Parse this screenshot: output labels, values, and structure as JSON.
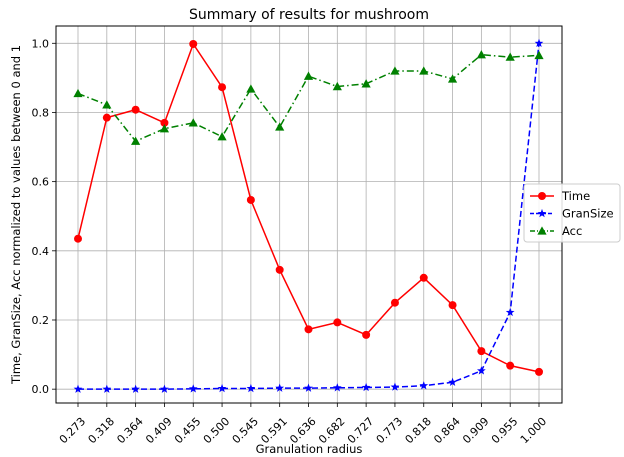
{
  "chart_data": {
    "type": "line",
    "title": "Summary of results for mushroom",
    "xlabel": "Granulation radius",
    "ylabel": "Time, GranSize, Acc normalized to values between 0 and 1",
    "categories": [
      "0.273",
      "0.318",
      "0.364",
      "0.409",
      "0.455",
      "0.500",
      "0.545",
      "0.591",
      "0.636",
      "0.682",
      "0.727",
      "0.773",
      "0.818",
      "0.864",
      "0.909",
      "0.955",
      "1.000"
    ],
    "yticks": [
      "0.0",
      "0.2",
      "0.4",
      "0.6",
      "0.8",
      "1.0"
    ],
    "ylim": [
      -0.04,
      1.05
    ],
    "grid": true,
    "legend_position": "center-right",
    "series": [
      {
        "name": "Time",
        "color": "#ff0000",
        "marker": "circle",
        "linestyle": "solid",
        "values": [
          0.435,
          0.785,
          0.808,
          0.77,
          0.998,
          0.873,
          0.547,
          0.345,
          0.173,
          0.193,
          0.157,
          0.25,
          0.322,
          0.243,
          0.11,
          0.068,
          0.05
        ]
      },
      {
        "name": "GranSize",
        "color": "#0000ff",
        "marker": "star",
        "linestyle": "dashed",
        "values": [
          0.0,
          0.0,
          0.0,
          0.0,
          0.001,
          0.002,
          0.002,
          0.003,
          0.003,
          0.004,
          0.005,
          0.006,
          0.01,
          0.02,
          0.053,
          0.222,
          1.0
        ]
      },
      {
        "name": "Acc",
        "color": "#008000",
        "marker": "triangle",
        "linestyle": "dashdot",
        "values": [
          0.855,
          0.822,
          0.717,
          0.753,
          0.77,
          0.73,
          0.868,
          0.758,
          0.905,
          0.875,
          0.883,
          0.92,
          0.92,
          0.897,
          0.967,
          0.96,
          0.965
        ]
      }
    ]
  }
}
